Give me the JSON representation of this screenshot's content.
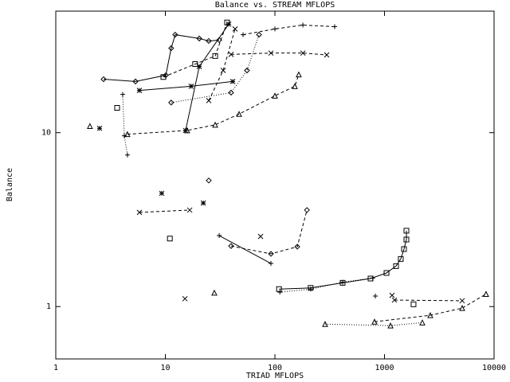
{
  "chart_data": {
    "type": "line",
    "title": "Balance vs. STREAM MFLOPS",
    "x_label": "TRIAD MFLOPS",
    "y_label": "Balance",
    "xscale": "log",
    "yscale": "log",
    "xlim": [
      1,
      10000
    ],
    "ylim": [
      0.5,
      50
    ],
    "xticks": [
      1,
      10,
      100,
      1000,
      10000
    ],
    "yticks": [
      1,
      10
    ],
    "color": "#000000",
    "series": [
      {
        "marker": "diamond",
        "line": "solid",
        "x": [
          2.73,
          5.34,
          10.1,
          11.3,
          12.3,
          20.4,
          24.9,
          31.0
        ],
        "values": [
          20.3,
          19.7,
          21.4,
          30.6,
          36.6,
          34.8,
          33.7,
          34.1
        ]
      },
      {
        "marker": "plus",
        "line": "dashed",
        "x": [
          51.2,
          100,
          180,
          351
        ],
        "values": [
          36.6,
          39.5,
          41.6,
          40.7
        ]
      },
      {
        "marker": "cross",
        "line": "dashed",
        "x": [
          39.8,
          92,
          180,
          297
        ],
        "values": [
          28.2,
          28.7,
          28.7,
          28
        ]
      },
      {
        "marker": "triangle",
        "line": "dashed",
        "x": [
          4.5,
          15.8,
          28.5,
          47.1,
          100,
          152,
          165
        ],
        "values": [
          9.8,
          10.3,
          11.1,
          12.8,
          16.3,
          18.5,
          21.6
        ]
      },
      {
        "marker": "cross",
        "line": "dashed",
        "x": [
          5.8,
          16.7
        ],
        "values": [
          3.48,
          3.59
        ]
      },
      {
        "marker": "plus",
        "line": "solid",
        "x": [
          31,
          92
        ],
        "values": [
          2.56,
          1.77
        ]
      },
      {
        "marker": "diamond",
        "line": "dashed",
        "x": [
          39.8,
          92,
          160,
          196
        ],
        "values": [
          2.23,
          2.01,
          2.21,
          3.59
        ]
      },
      {
        "marker": "square",
        "line": "solid",
        "x": [
          109,
          212,
          415,
          746,
          1043,
          1275,
          1408,
          1507,
          1585,
          1585
        ],
        "values": [
          1.26,
          1.28,
          1.37,
          1.45,
          1.56,
          1.71,
          1.88,
          2.14,
          2.43,
          2.73
        ]
      },
      {
        "marker": "plus",
        "line": "dotted",
        "x": [
          111,
          212,
          415,
          780
        ],
        "values": [
          1.21,
          1.26,
          1.38,
          1.46
        ]
      },
      {
        "marker": "cross",
        "line": "dashed",
        "x": [
          1233,
          5117
        ],
        "values": [
          1.09,
          1.08
        ]
      },
      {
        "marker": "triangle",
        "line": "dashed",
        "x": [
          811,
          2618,
          5117,
          8450
        ],
        "values": [
          0.818,
          0.891,
          0.98,
          1.18
        ]
      },
      {
        "marker": "triangle",
        "line": "dotted",
        "x": [
          287,
          1135,
          2215
        ],
        "values": [
          0.793,
          0.777,
          0.809
        ]
      },
      {
        "marker": "plus",
        "line": "dotted",
        "x": [
          4.08,
          4.22,
          4.51
        ],
        "values": [
          16.6,
          9.6,
          7.44
        ]
      },
      {
        "marker": "star",
        "line": "solid",
        "x": [
          5.8,
          17.2,
          41.2
        ],
        "values": [
          17.5,
          18.5,
          19.7
        ]
      },
      {
        "marker": "star",
        "line": "solid",
        "x": [
          15.3,
          20.4,
          37.9
        ],
        "values": [
          10.3,
          24.0,
          42.1
        ]
      },
      {
        "marker": "cross",
        "line": "dashed",
        "x": [
          24.9,
          33.7,
          43.3
        ],
        "values": [
          15.3,
          22.8,
          39.5
        ]
      },
      {
        "marker": "diamond",
        "line": "dotted",
        "x": [
          11.3,
          39.8,
          55.6,
          71.6
        ],
        "values": [
          14.9,
          17,
          22.8,
          36.6
        ]
      },
      {
        "marker": "square",
        "line": "dashed",
        "x": [
          9.59,
          18.7,
          28.5,
          36.6
        ],
        "values": [
          20.9,
          24.8,
          27.6,
          43.0
        ]
      },
      {
        "marker": "star",
        "line": "none",
        "x": [
          2.51,
          9.27,
          22.2
        ],
        "values": [
          10.6,
          4.48,
          3.94
        ]
      },
      {
        "marker": "diamond",
        "line": "none",
        "x": [
          24.9
        ],
        "values": [
          5.31
        ]
      },
      {
        "marker": "square",
        "line": "none",
        "x": [
          11,
          1841,
          3.63
        ],
        "values": [
          2.46,
          1.03,
          13.9
        ]
      },
      {
        "marker": "cross",
        "line": "none",
        "x": [
          15.1,
          74,
          1172
        ],
        "values": [
          1.11,
          2.53,
          1.16
        ]
      },
      {
        "marker": "triangle",
        "line": "none",
        "x": [
          28,
          2.05
        ],
        "values": [
          1.2,
          10.9
        ]
      },
      {
        "marker": "plus",
        "line": "none",
        "x": [
          825
        ],
        "values": [
          1.15
        ]
      }
    ]
  }
}
